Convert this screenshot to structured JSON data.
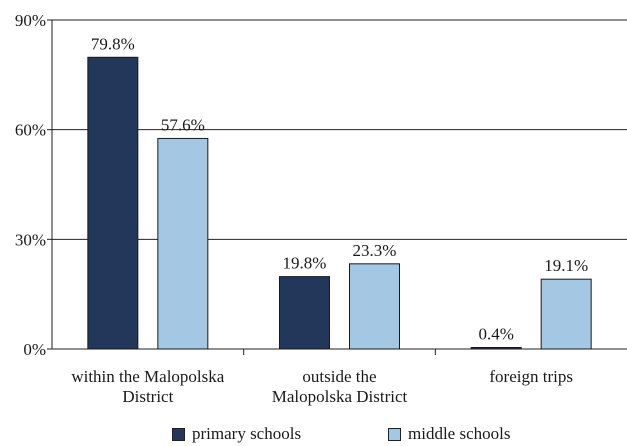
{
  "chart_data": {
    "type": "bar",
    "categories": [
      [
        "within the Malopolska",
        "District"
      ],
      [
        "outside the",
        "Malopolska District"
      ],
      [
        "foreign trips"
      ]
    ],
    "series": [
      {
        "name": "primary schools",
        "values": [
          79.8,
          19.8,
          0.4
        ],
        "labels": [
          "79.8%",
          "19.8%",
          "0.4%"
        ],
        "color": "#23375b"
      },
      {
        "name": "middle schools",
        "values": [
          57.6,
          23.3,
          19.1
        ],
        "labels": [
          "57.6%",
          "23.3%",
          "19.1%"
        ],
        "color": "#a4c7e4"
      }
    ],
    "yticks": [
      0,
      30,
      60,
      90
    ],
    "ytick_labels": [
      "0%",
      "30%",
      "60%",
      "90%"
    ],
    "ylim": [
      0,
      90
    ],
    "grid": true,
    "legend_position": "bottom",
    "title": "",
    "xlabel": "",
    "ylabel": ""
  }
}
